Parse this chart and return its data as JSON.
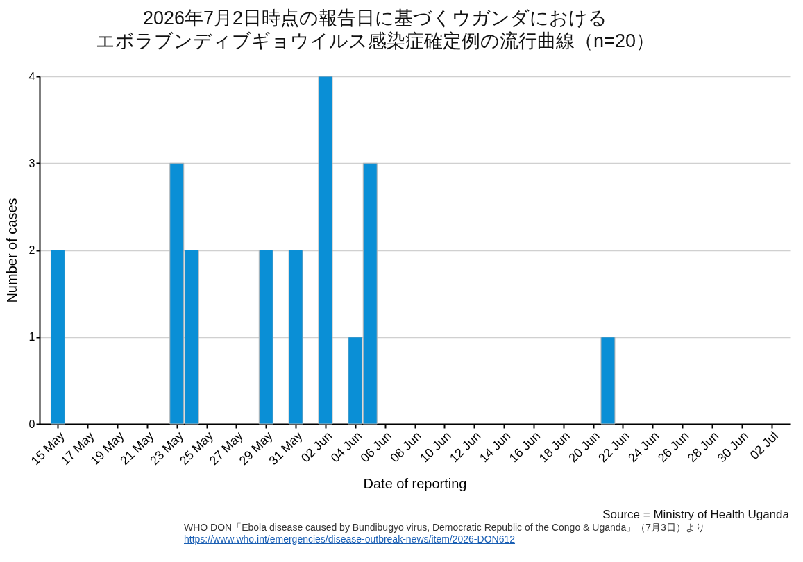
{
  "chart_data": {
    "type": "bar",
    "title": "2026年7月2日時点の報告日に基づくウガンダにおける",
    "subtitle": "エボラブンディブギョウイルス感染症確定例の流行曲線（n=20）",
    "xlabel": "Date of reporting",
    "ylabel": "Number of cases",
    "x": [
      "2026-05-15",
      "2026-05-23",
      "2026-05-24",
      "2026-05-29",
      "2026-05-31",
      "2026-06-02",
      "2026-06-04",
      "2026-06-05",
      "2026-06-21"
    ],
    "values": [
      2,
      3,
      2,
      2,
      2,
      4,
      1,
      3,
      1
    ],
    "color": "#0a8fd6",
    "xlim": [
      "2026-05-14",
      "2026-07-03"
    ],
    "xticks": [
      {
        "value": "2026-05-15",
        "label": "15 May"
      },
      {
        "value": "2026-05-17",
        "label": "17 May"
      },
      {
        "value": "2026-05-19",
        "label": "19 May"
      },
      {
        "value": "2026-05-21",
        "label": "21 May"
      },
      {
        "value": "2026-05-23",
        "label": "23 May"
      },
      {
        "value": "2026-05-25",
        "label": "25 May"
      },
      {
        "value": "2026-05-27",
        "label": "27 May"
      },
      {
        "value": "2026-05-29",
        "label": "29 May"
      },
      {
        "value": "2026-05-31",
        "label": "31 May"
      },
      {
        "value": "2026-06-02",
        "label": "02 Jun"
      },
      {
        "value": "2026-06-04",
        "label": "04 Jun"
      },
      {
        "value": "2026-06-06",
        "label": "06 Jun"
      },
      {
        "value": "2026-06-08",
        "label": "08 Jun"
      },
      {
        "value": "2026-06-10",
        "label": "10 Jun"
      },
      {
        "value": "2026-06-12",
        "label": "12 Jun"
      },
      {
        "value": "2026-06-14",
        "label": "14 Jun"
      },
      {
        "value": "2026-06-16",
        "label": "16 Jun"
      },
      {
        "value": "2026-06-18",
        "label": "18 Jun"
      },
      {
        "value": "2026-06-20",
        "label": "20 Jun"
      },
      {
        "value": "2026-06-22",
        "label": "22 Jun"
      },
      {
        "value": "2026-06-24",
        "label": "24 Jun"
      },
      {
        "value": "2026-06-26",
        "label": "26 Jun"
      },
      {
        "value": "2026-06-28",
        "label": "28 Jun"
      },
      {
        "value": "2026-06-30",
        "label": "30 Jun"
      },
      {
        "value": "2026-07-02",
        "label": "02 Jul"
      }
    ],
    "ylim": [
      0,
      4
    ],
    "yticks": [
      0,
      1,
      2,
      3,
      4
    ],
    "grid": "y",
    "annotations": [
      "Source = Ministry of Health Uganda",
      "WHO DON「Ebola disease caused by Bundibugyo virus, Democratic Republic of the Congo & Uganda」（7月3日）より",
      "https://www.who.int/emergencies/disease-outbreak-news/item/2026-DON612"
    ]
  }
}
